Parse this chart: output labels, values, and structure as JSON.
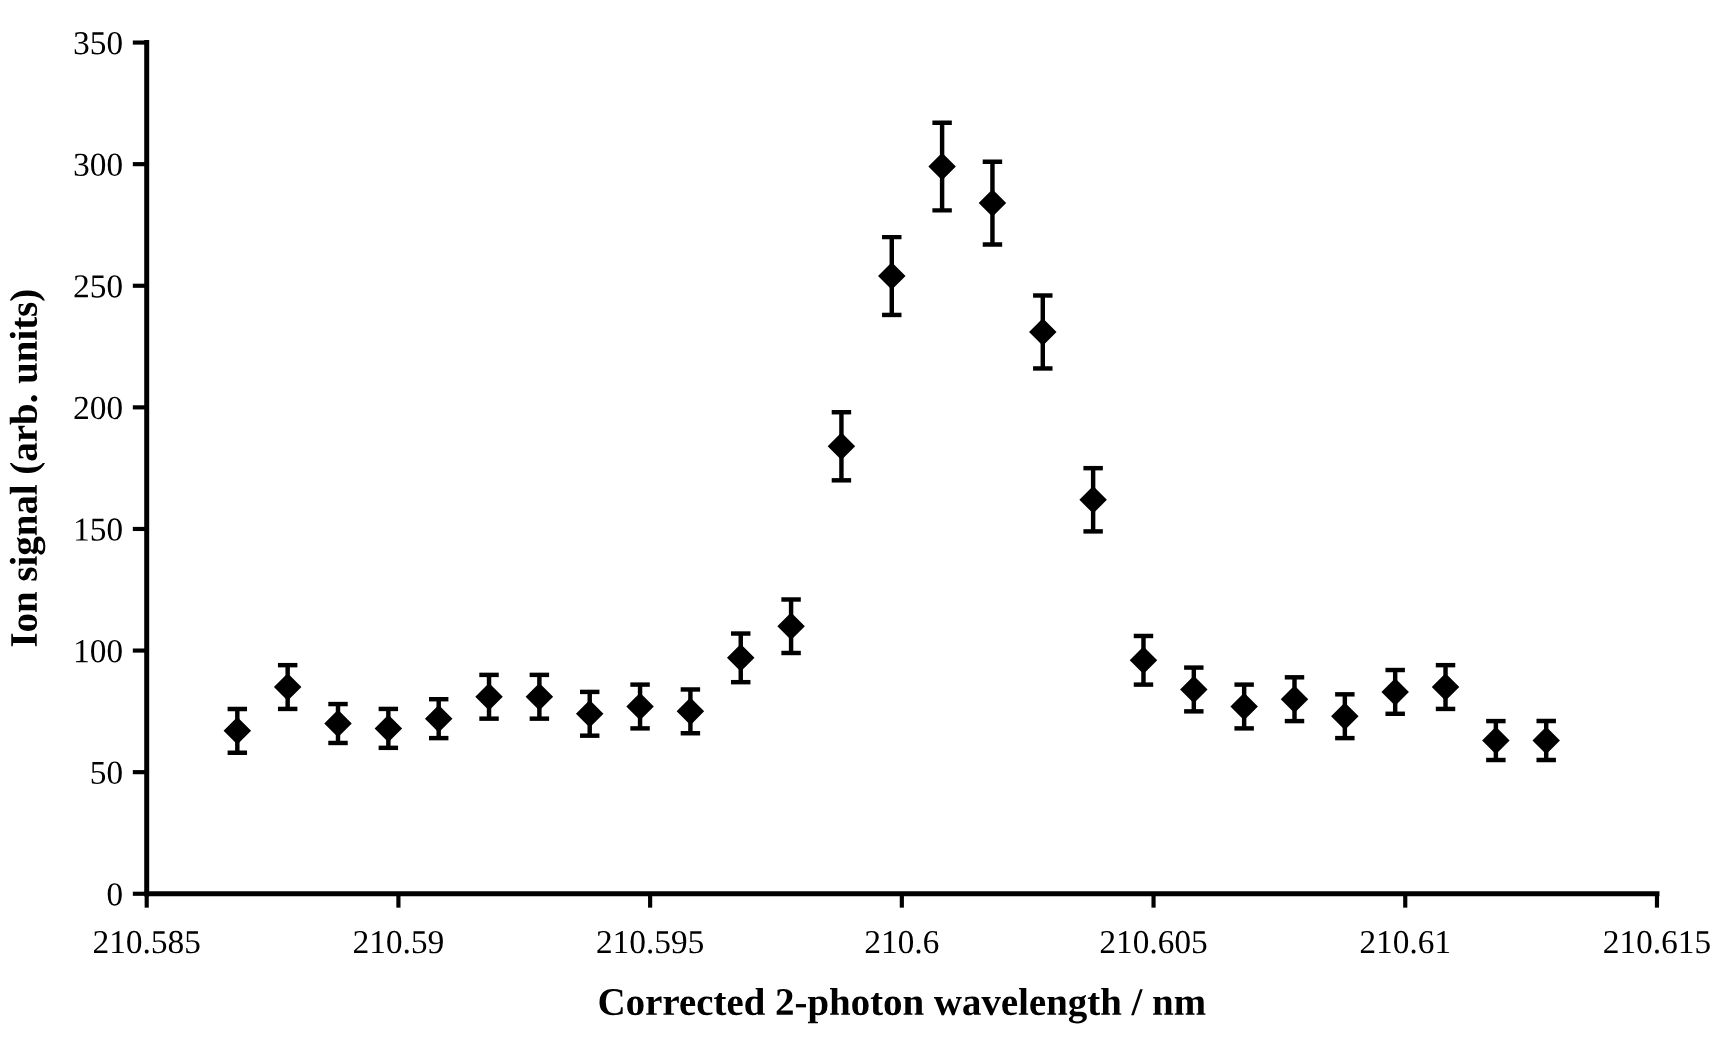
{
  "chart_data": {
    "type": "scatter",
    "xlabel": "Corrected 2-photon wavelength / nm",
    "ylabel": "Ion signal (arb. units)",
    "x": [
      210.5868,
      210.5878,
      210.5888,
      210.5898,
      210.5908,
      210.5918,
      210.5928,
      210.5938,
      210.5948,
      210.5958,
      210.5968,
      210.5978,
      210.5988,
      210.5998,
      210.6008,
      210.6018,
      210.6028,
      210.6038,
      210.6048,
      210.6058,
      210.6068,
      210.6078,
      210.6088,
      210.6098,
      210.6108,
      210.6118,
      210.6128
    ],
    "series": [
      {
        "color": "#000000",
        "values": [
          67,
          85,
          70,
          68,
          72,
          81,
          81,
          74,
          77,
          75,
          97,
          110,
          184,
          254,
          299,
          284,
          231,
          162,
          96,
          84,
          77,
          80,
          73,
          83,
          85,
          63,
          63
        ],
        "errors": [
          9,
          9,
          8,
          8,
          8,
          9,
          9,
          9,
          9,
          9,
          10,
          11,
          14,
          16,
          18,
          17,
          15,
          13,
          10,
          9,
          9,
          9,
          9,
          9,
          9,
          8,
          8
        ]
      }
    ],
    "xlim": [
      210.585,
      210.615
    ],
    "xticks": [
      210.585,
      210.59,
      210.595,
      210.6,
      210.605,
      210.61,
      210.615
    ],
    "ylim": [
      0,
      350
    ],
    "yticks": [
      0,
      50,
      100,
      150,
      200,
      250,
      300,
      350
    ],
    "marker": "diamond",
    "grid": false,
    "legend": false
  }
}
